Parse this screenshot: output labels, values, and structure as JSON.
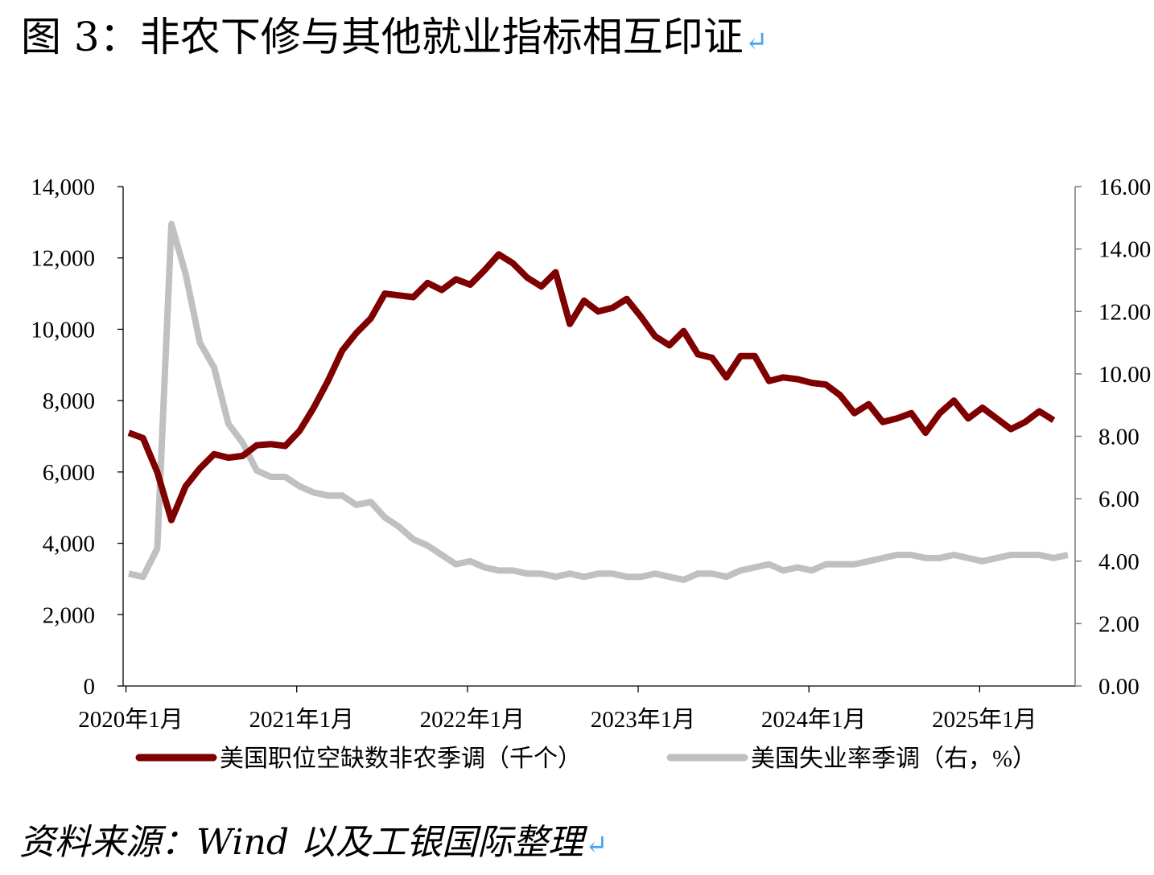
{
  "page": {
    "title": "图 3：非农下修与其他就业指标相互印证",
    "return_mark": "↵",
    "source": "资料来源：Wind 以及工银国际整理"
  },
  "chart_data": {
    "type": "line",
    "x_start": "2020年1月",
    "x_frequency": "monthly",
    "x_ticks": [
      "2020年1月",
      "2021年1月",
      "2022年1月",
      "2023年1月",
      "2024年1月",
      "2025年1月"
    ],
    "y_left": {
      "ylim": [
        0,
        14000
      ],
      "ticks": [
        "0",
        "2,000",
        "4,000",
        "6,000",
        "8,000",
        "10,000",
        "12,000",
        "14,000"
      ]
    },
    "y_right": {
      "ylim": [
        0,
        16
      ],
      "ticks": [
        "0.00",
        "2.00",
        "4.00",
        "6.00",
        "8.00",
        "10.00",
        "12.00",
        "14.00",
        "16.00"
      ]
    },
    "legend_position": "bottom",
    "grid": false,
    "series": [
      {
        "name": "美国职位空缺数非农季调（千个）",
        "axis": "left",
        "color": "#7f0000",
        "values": [
          7100,
          6950,
          6000,
          4650,
          5600,
          6100,
          6500,
          6400,
          6450,
          6750,
          6780,
          6730,
          7150,
          7800,
          8550,
          9400,
          9900,
          10300,
          11000,
          10950,
          10900,
          11300,
          11100,
          11400,
          11250,
          11650,
          12100,
          11850,
          11450,
          11200,
          11600,
          10150,
          10800,
          10500,
          10600,
          10850,
          10350,
          9800,
          9550,
          9950,
          9300,
          9200,
          8650,
          9250,
          9250,
          8550,
          8650,
          8600,
          8500,
          8450,
          8150,
          7650,
          7900,
          7400,
          7500,
          7650,
          7100,
          7650,
          8000,
          7500,
          7800,
          7500,
          7200,
          7400,
          7700,
          7450
        ]
      },
      {
        "name": "美国失业率季调（右，%）",
        "axis": "right",
        "color": "#c0c0c0",
        "values": [
          3.6,
          3.5,
          4.4,
          14.8,
          13.2,
          11.0,
          10.2,
          8.4,
          7.8,
          6.9,
          6.7,
          6.7,
          6.4,
          6.2,
          6.1,
          6.1,
          5.8,
          5.9,
          5.4,
          5.1,
          4.7,
          4.5,
          4.2,
          3.9,
          4.0,
          3.8,
          3.7,
          3.7,
          3.6,
          3.6,
          3.5,
          3.6,
          3.5,
          3.6,
          3.6,
          3.5,
          3.5,
          3.6,
          3.5,
          3.4,
          3.6,
          3.6,
          3.5,
          3.7,
          3.8,
          3.9,
          3.7,
          3.8,
          3.7,
          3.9,
          3.9,
          3.9,
          4.0,
          4.1,
          4.2,
          4.2,
          4.1,
          4.1,
          4.2,
          4.1,
          4.0,
          4.1,
          4.2,
          4.2,
          4.2,
          4.1,
          4.2
        ]
      }
    ]
  }
}
